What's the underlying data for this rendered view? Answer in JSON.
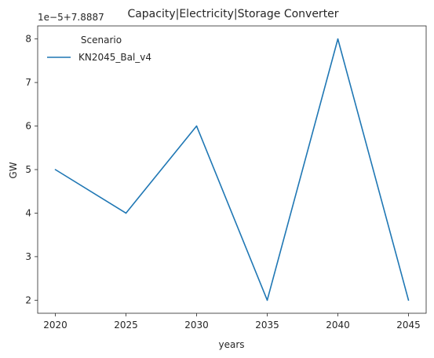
{
  "chart_data": {
    "type": "line",
    "title": "Capacity|Electricity|Storage Converter",
    "xlabel": "years",
    "ylabel": "GW",
    "offset_text": "1e−5+7.8887",
    "x": [
      2020,
      2025,
      2030,
      2035,
      2040,
      2045
    ],
    "x_ticks": [
      "2020",
      "2025",
      "2030",
      "2035",
      "2040",
      "2045"
    ],
    "y_ticks": [
      "2",
      "3",
      "4",
      "5",
      "6",
      "7",
      "8"
    ],
    "y_tick_values": [
      2,
      3,
      4,
      5,
      6,
      7,
      8
    ],
    "ylim": [
      1.7,
      8.3
    ],
    "xlim": [
      2018.75,
      2046.25
    ],
    "series": [
      {
        "name": "KN2045_Bal_v4",
        "values": [
          5,
          4,
          6,
          2,
          8,
          2
        ],
        "color": "#1f77b4"
      }
    ],
    "legend": {
      "title": "Scenario",
      "placement": "top-left"
    },
    "grid": false
  }
}
